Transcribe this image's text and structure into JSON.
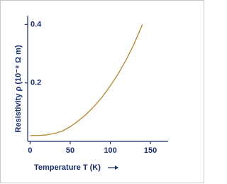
{
  "chart_data": {
    "type": "line",
    "x_label": "Temperature T (K)",
    "y_label": "Resistivity ρ (10⁻⁸ Ω m)",
    "x": [
      0,
      10,
      20,
      30,
      40,
      50,
      60,
      70,
      80,
      90,
      100,
      110,
      120,
      130,
      140
    ],
    "series": [
      {
        "name": "Resistivity",
        "color": "#b8862b",
        "values": [
          0.02,
          0.02,
          0.022,
          0.027,
          0.035,
          0.05,
          0.07,
          0.093,
          0.12,
          0.152,
          0.19,
          0.232,
          0.28,
          0.336,
          0.4
        ]
      }
    ],
    "xlim": [
      -3,
      172
    ],
    "ylim": [
      0,
      0.43
    ],
    "xticks": [
      0,
      50,
      100,
      150
    ],
    "yticks": [
      0.2,
      0.4
    ]
  }
}
